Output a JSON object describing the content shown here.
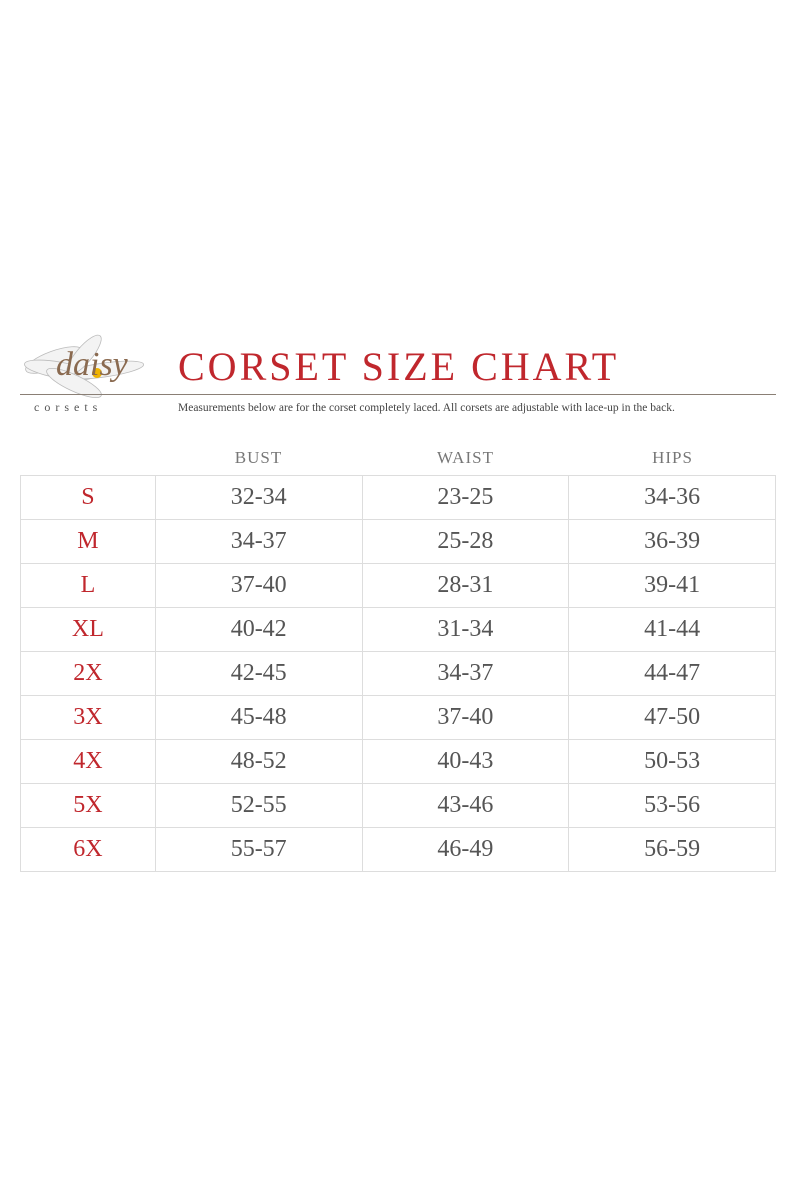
{
  "brand": {
    "logo_text": "daisy",
    "logo_subtext": "corsets"
  },
  "title": "CORSET SIZE CHART",
  "subtitle": "Measurements below are for the corset completely laced.  All corsets are adjustable with lace-up in the back.",
  "colors": {
    "accent": "#c0272d",
    "text": "#555555"
  },
  "table": {
    "headers": [
      "",
      "BUST",
      "WAIST",
      "HIPS"
    ],
    "rows": [
      [
        "S",
        "32-34",
        "23-25",
        "34-36"
      ],
      [
        "M",
        "34-37",
        "25-28",
        "36-39"
      ],
      [
        "L",
        "37-40",
        "28-31",
        "39-41"
      ],
      [
        "XL",
        "40-42",
        "31-34",
        "41-44"
      ],
      [
        "2X",
        "42-45",
        "34-37",
        "44-47"
      ],
      [
        "3X",
        "45-48",
        "37-40",
        "47-50"
      ],
      [
        "4X",
        "48-52",
        "40-43",
        "50-53"
      ],
      [
        "5X",
        "52-55",
        "43-46",
        "53-56"
      ],
      [
        "6X",
        "55-57",
        "46-49",
        "56-59"
      ]
    ]
  }
}
